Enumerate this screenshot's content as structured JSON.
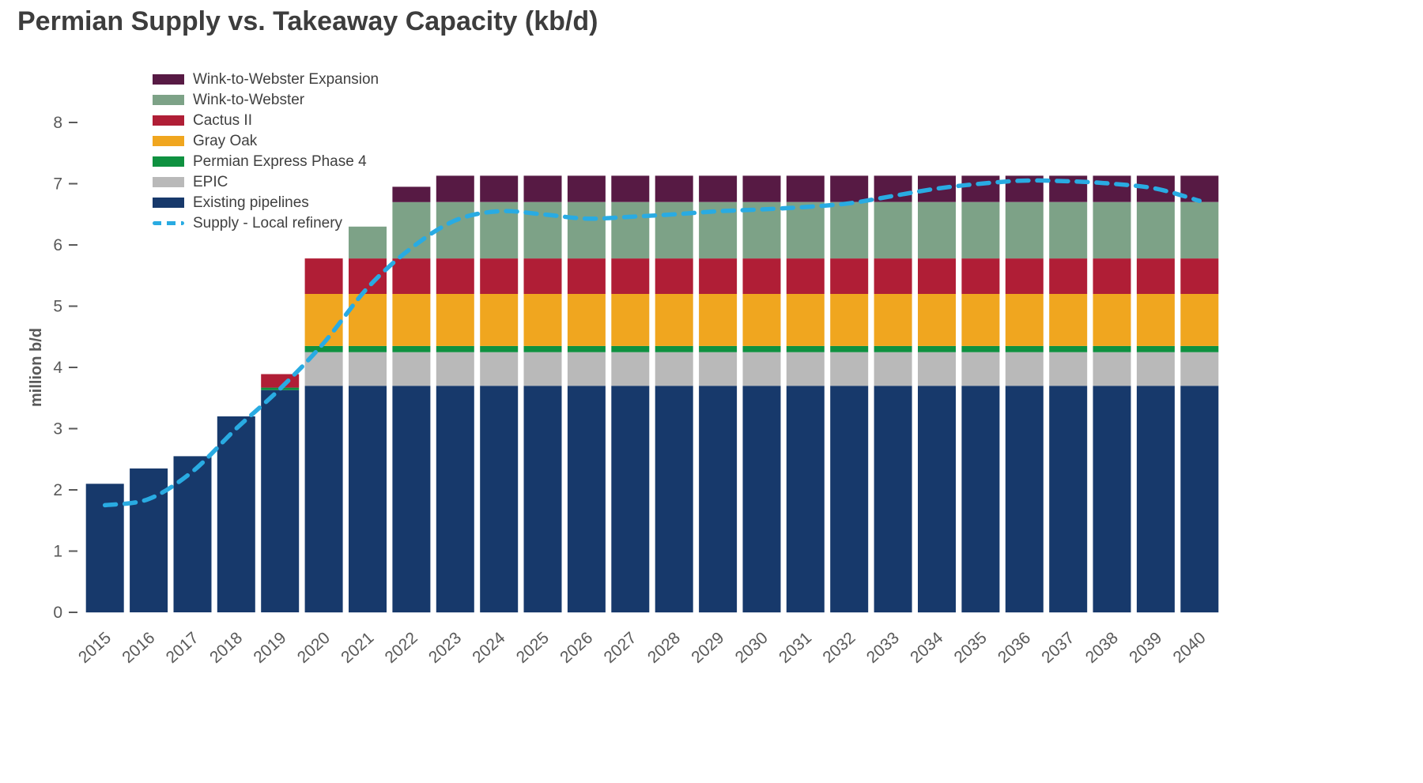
{
  "page_title": "Permian Supply vs. Takeaway Capacity (kb/d)",
  "chart_data": {
    "type": "bar",
    "stacked": true,
    "title": "Permian Supply vs. Takeaway Capacity (kb/d)",
    "xlabel": "",
    "ylabel": "million b/d",
    "ylim": [
      0,
      8
    ],
    "yticks": [
      0,
      1,
      2,
      3,
      4,
      5,
      6,
      7,
      8
    ],
    "grid": false,
    "legend_position": "top-left",
    "categories": [
      "2015",
      "2016",
      "2017",
      "2018",
      "2019",
      "2020",
      "2021",
      "2022",
      "2023",
      "2024",
      "2025",
      "2026",
      "2027",
      "2028",
      "2029",
      "2030",
      "2031",
      "2032",
      "2033",
      "2034",
      "2035",
      "2036",
      "2037",
      "2038",
      "2039",
      "2040"
    ],
    "series": [
      {
        "name": "Existing pipelines",
        "color": "#17396b",
        "values": [
          2.1,
          2.35,
          2.55,
          3.2,
          3.63,
          3.7,
          3.7,
          3.7,
          3.7,
          3.7,
          3.7,
          3.7,
          3.7,
          3.7,
          3.7,
          3.7,
          3.7,
          3.7,
          3.7,
          3.7,
          3.7,
          3.7,
          3.7,
          3.7,
          3.7,
          3.7
        ]
      },
      {
        "name": "EPIC",
        "color": "#b9b9b9",
        "values": [
          0,
          0,
          0,
          0,
          0,
          0.55,
          0.55,
          0.55,
          0.55,
          0.55,
          0.55,
          0.55,
          0.55,
          0.55,
          0.55,
          0.55,
          0.55,
          0.55,
          0.55,
          0.55,
          0.55,
          0.55,
          0.55,
          0.55,
          0.55,
          0.55
        ]
      },
      {
        "name": "Permian Express Phase 4",
        "color": "#0f9140",
        "values": [
          0,
          0,
          0,
          0,
          0.04,
          0.1,
          0.1,
          0.1,
          0.1,
          0.1,
          0.1,
          0.1,
          0.1,
          0.1,
          0.1,
          0.1,
          0.1,
          0.1,
          0.1,
          0.1,
          0.1,
          0.1,
          0.1,
          0.1,
          0.1,
          0.1
        ]
      },
      {
        "name": "Gray Oak",
        "color": "#f0a61f",
        "values": [
          0,
          0,
          0,
          0,
          0,
          0.85,
          0.85,
          0.85,
          0.85,
          0.85,
          0.85,
          0.85,
          0.85,
          0.85,
          0.85,
          0.85,
          0.85,
          0.85,
          0.85,
          0.85,
          0.85,
          0.85,
          0.85,
          0.85,
          0.85,
          0.85
        ]
      },
      {
        "name": "Cactus II",
        "color": "#b01e36",
        "values": [
          0,
          0,
          0,
          0,
          0.22,
          0.58,
          0.58,
          0.58,
          0.58,
          0.58,
          0.58,
          0.58,
          0.58,
          0.58,
          0.58,
          0.58,
          0.58,
          0.58,
          0.58,
          0.58,
          0.58,
          0.58,
          0.58,
          0.58,
          0.58,
          0.58
        ]
      },
      {
        "name": "Wink-to-Webster",
        "color": "#7da287",
        "values": [
          0,
          0,
          0,
          0,
          0,
          0,
          0.52,
          0.92,
          0.92,
          0.92,
          0.92,
          0.92,
          0.92,
          0.92,
          0.92,
          0.92,
          0.92,
          0.92,
          0.92,
          0.92,
          0.92,
          0.92,
          0.92,
          0.92,
          0.92,
          0.92
        ]
      },
      {
        "name": "Wink-to-Webster Expansion",
        "color": "#571a44",
        "values": [
          0,
          0,
          0,
          0,
          0,
          0,
          0,
          0.25,
          0.43,
          0.43,
          0.43,
          0.43,
          0.43,
          0.43,
          0.43,
          0.43,
          0.43,
          0.43,
          0.43,
          0.43,
          0.43,
          0.43,
          0.43,
          0.43,
          0.43,
          0.43
        ]
      }
    ],
    "line_series": {
      "name": "Supply - Local refinery",
      "color": "#29abe2",
      "style": "dashed",
      "values": [
        1.75,
        1.85,
        2.3,
        3.0,
        3.65,
        4.4,
        5.3,
        5.95,
        6.4,
        6.55,
        6.5,
        6.43,
        6.46,
        6.5,
        6.55,
        6.58,
        6.62,
        6.68,
        6.8,
        6.92,
        7.0,
        7.05,
        7.04,
        7.0,
        6.92,
        6.72
      ]
    },
    "axis_text_color": "#595959"
  }
}
